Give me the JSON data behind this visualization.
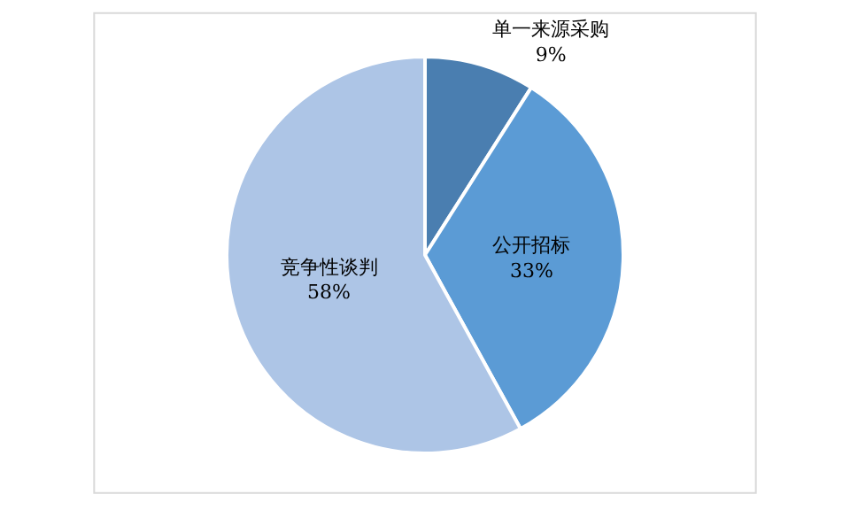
{
  "chart_data": {
    "type": "pie",
    "categories": [
      "单一来源采购",
      "公开招标",
      "竞争性谈判"
    ],
    "values": [
      9,
      33,
      58
    ],
    "value_labels": [
      "9%",
      "33%",
      "58%"
    ],
    "colors": [
      "#4a7eb0",
      "#5b9bd5",
      "#adc5e6"
    ],
    "legend": false
  }
}
